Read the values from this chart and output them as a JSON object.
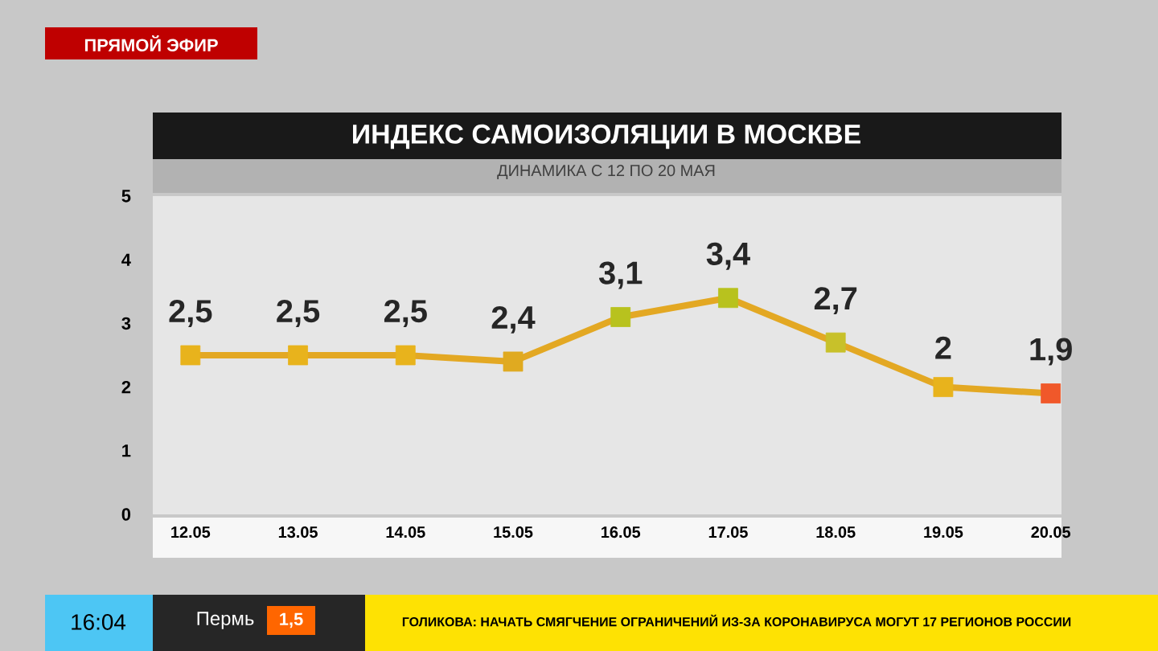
{
  "chart_data": {
    "type": "line",
    "title": "ИНДЕКС САМОИЗОЛЯЦИИ В МОСКВЕ",
    "subtitle": "ДИНАМИКА С 12 ПО 20 МАЯ",
    "categories": [
      "12.05",
      "13.05",
      "14.05",
      "15.05",
      "16.05",
      "17.05",
      "18.05",
      "19.05",
      "20.05"
    ],
    "series": [
      {
        "color": "#e3a823",
        "colors": [
          "#e8b31c",
          "#e8b31c",
          "#e8b31c",
          "#e0aa20",
          "#b8c21e",
          "#b8c21e",
          "#c8c12a",
          "#e8b31c",
          "#f0582a"
        ],
        "values": [
          2.5,
          2.5,
          2.5,
          2.4,
          3.1,
          3.4,
          2.7,
          2,
          1.9
        ],
        "value_labels": [
          "2,5",
          "2,5",
          "2,5",
          "2,4",
          "3,1",
          "3,4",
          "2,7",
          "2",
          "1,9"
        ]
      }
    ],
    "ylim": [
      0,
      5
    ],
    "yticks": [
      0,
      1,
      2,
      3,
      4,
      5
    ],
    "marker": "square",
    "line_style": "solid",
    "annotations": [
      "ПРЯМОЙ ЭФИР",
      "16:04",
      "Пермь",
      "1,5",
      "ГОЛИКОВА: НАЧАТЬ СМЯГЧЕНИЕ ОГРАНИЧЕНИЙ ИЗ-ЗА КОРОНАВИРУСА МОГУТ 17 РЕГИОНОВ РОССИИ"
    ]
  }
}
